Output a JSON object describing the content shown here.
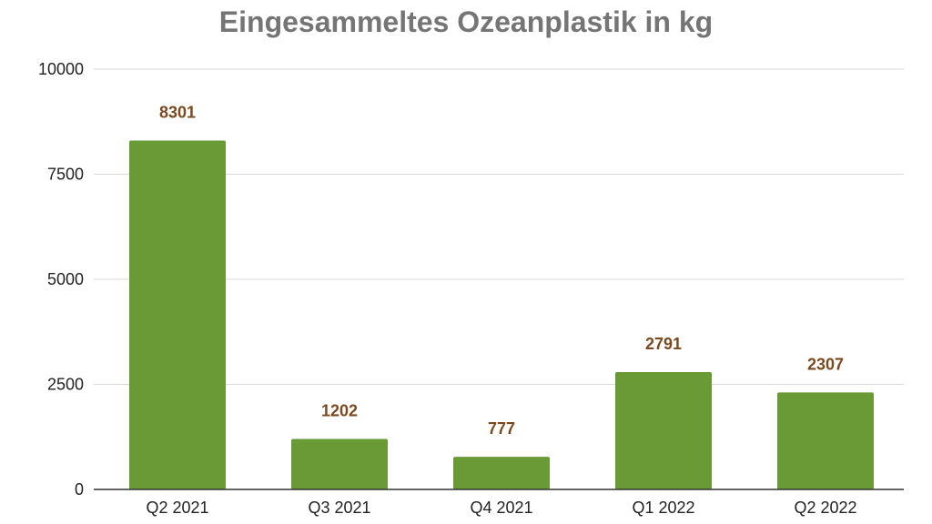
{
  "chart_data": {
    "type": "bar",
    "title": "Eingesammeltes Ozeanplastik in kg",
    "categories": [
      "Q2 2021",
      "Q3 2021",
      "Q4 2021",
      "Q1 2022",
      "Q2 2022"
    ],
    "values": [
      8301,
      1202,
      777,
      2791,
      2307
    ],
    "data_labels": [
      "8301",
      "1202",
      "777",
      "2791",
      "2307"
    ],
    "ylim": [
      0,
      10000
    ],
    "yticks": [
      0,
      2500,
      5000,
      7500,
      10000
    ],
    "ytick_labels": [
      "0",
      "2500",
      "5000",
      "7500",
      "10000"
    ],
    "grid": true,
    "legend": "none",
    "bar_color": "#6a9a35",
    "label_color": "#7a4a1e",
    "grid_color": "#d9d9d9",
    "title_color": "#757575"
  }
}
